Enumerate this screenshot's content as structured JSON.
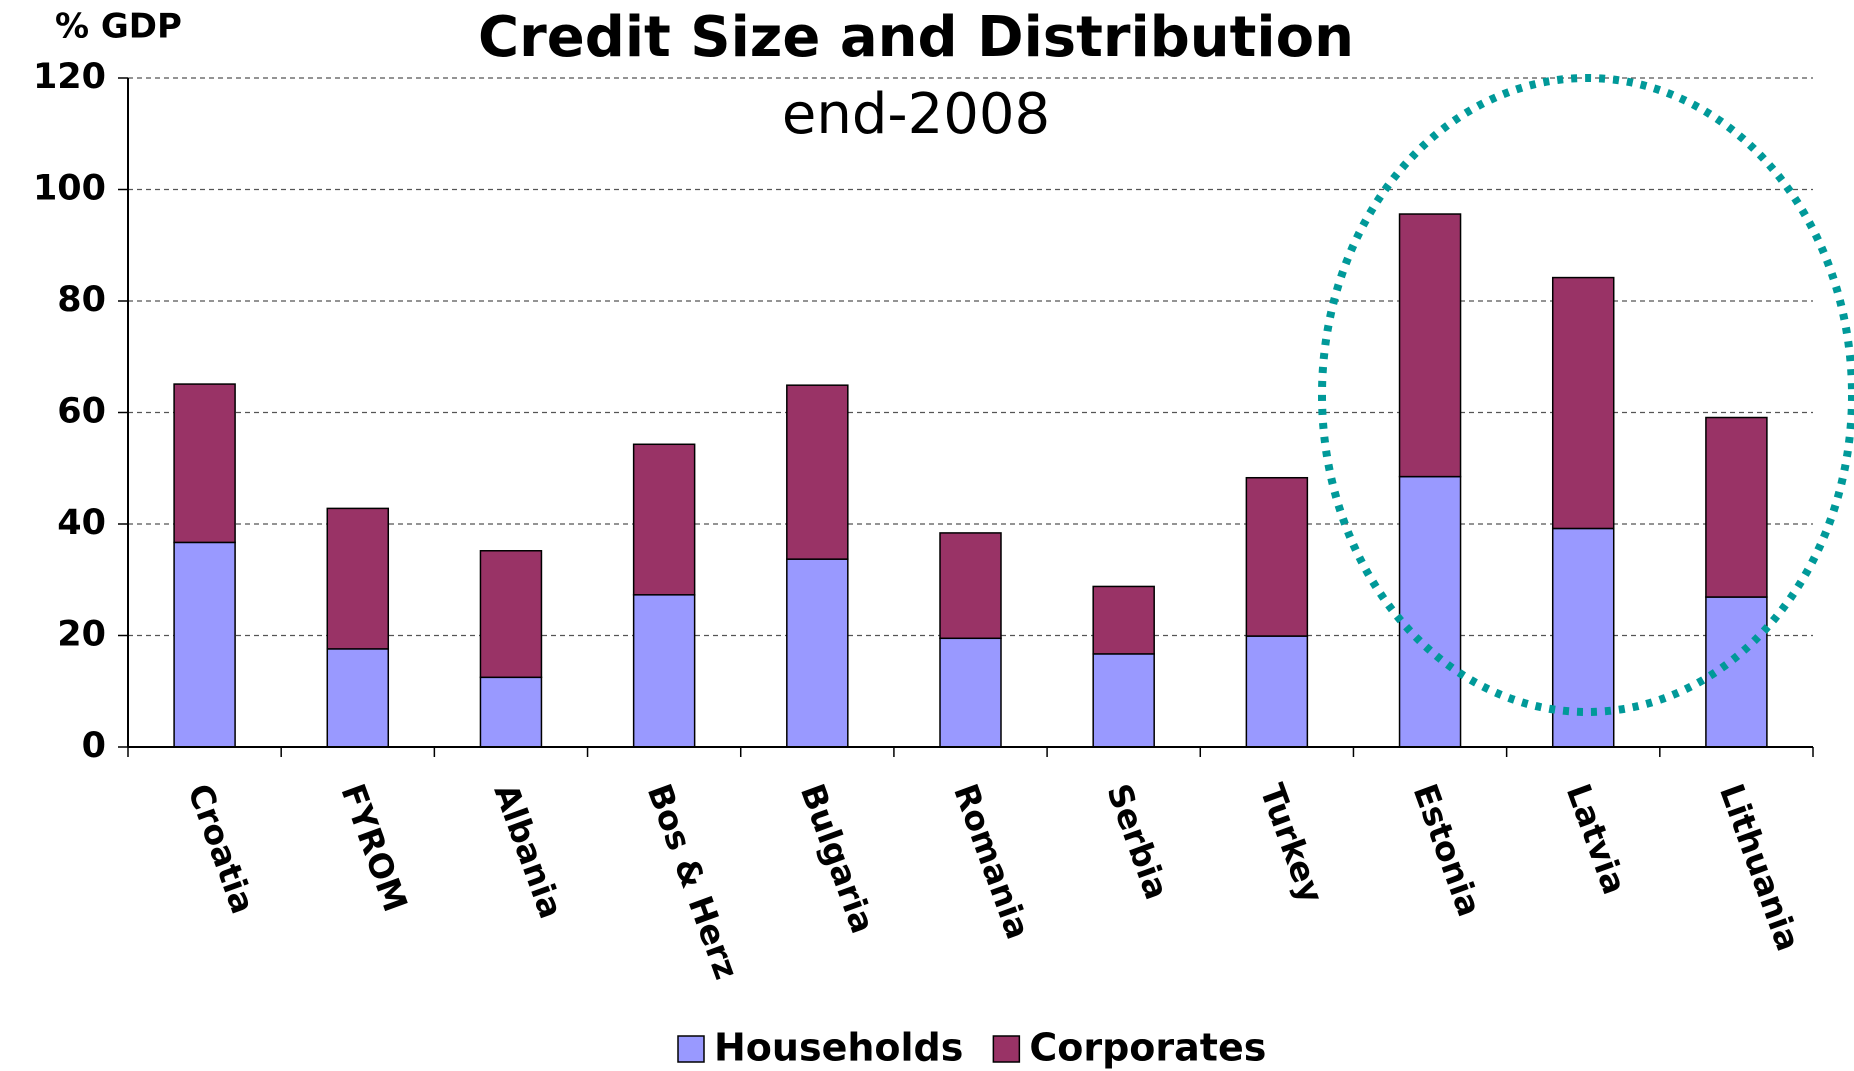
{
  "chart_data": {
    "type": "stacked_bar",
    "title": "Credit Size and Distribution",
    "subtitle": "end-2008",
    "y_label": "% GDP",
    "categories": [
      "Croatia",
      "FYROM",
      "Albania",
      "Bos & Herz",
      "Bulgaria",
      "Romania",
      "Serbia",
      "Turkey",
      "Estonia",
      "Latvia",
      "Lithuania"
    ],
    "series": [
      {
        "name": "Households",
        "color": "#9999ff",
        "values": [
          36.7,
          17.6,
          12.5,
          27.3,
          33.7,
          19.5,
          16.7,
          19.9,
          48.5,
          39.2,
          26.9
        ]
      },
      {
        "name": "Corporates",
        "color": "#993366",
        "values": [
          28.4,
          25.2,
          22.7,
          27.0,
          31.2,
          18.9,
          12.1,
          28.4,
          47.1,
          45.0,
          32.2
        ]
      }
    ],
    "ylim": [
      0,
      120
    ],
    "yticks": [
      0,
      20,
      40,
      60,
      80,
      100,
      120
    ],
    "grid": true,
    "legend": "bottom"
  }
}
